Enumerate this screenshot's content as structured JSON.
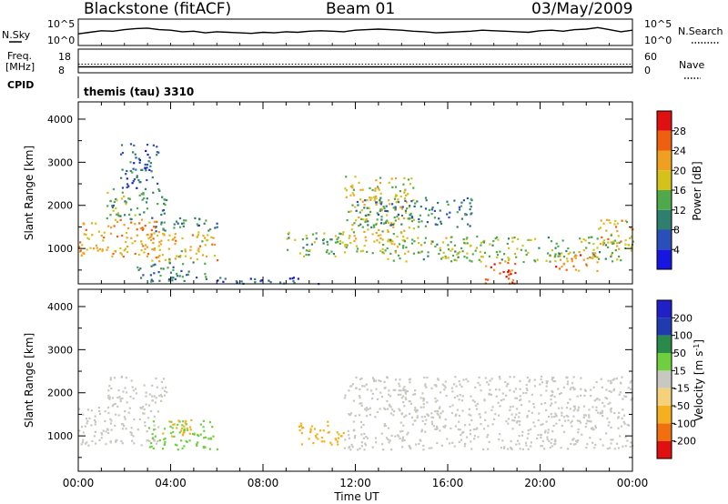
{
  "header": {
    "station": "Blackstone (fitACF)",
    "beam": "Beam 01",
    "date": "03/May/2009"
  },
  "left_labels": {
    "nsky": "N.Sky",
    "freq": "Freq.",
    "freq_unit": "[MHz]",
    "cpid": "CPID"
  },
  "right_labels": {
    "nsearch": "N.Search",
    "nave": "Nave"
  },
  "cpid_text": "themis (tau) 3310",
  "chart_data": [
    {
      "id": "noise",
      "type": "line",
      "left_ticks": [
        "10^5",
        "10^0"
      ],
      "right_ticks": [
        "10^5",
        "10^0"
      ],
      "series": [
        {
          "name": "N.Sky",
          "x": [
            0,
            0.5,
            1,
            1.5,
            2,
            2.5,
            3,
            3.5,
            4,
            4.5,
            5,
            5.5,
            6,
            6.5,
            7,
            7.5,
            8,
            8.5,
            9,
            9.5,
            10,
            10.5,
            11,
            11.5,
            12,
            12.5,
            13,
            13.5,
            14,
            14.5,
            15,
            15.5,
            16,
            16.5,
            17,
            17.5,
            18,
            18.5,
            19,
            19.5,
            20,
            20.5,
            21,
            21.5,
            22,
            22.5,
            23,
            23.5,
            24
          ],
          "values": [
            2.2,
            2.5,
            2.8,
            2.7,
            3.0,
            3.2,
            3.3,
            3.0,
            2.9,
            2.6,
            2.7,
            2.4,
            2.6,
            2.5,
            2.4,
            2.3,
            2.5,
            2.4,
            2.6,
            2.5,
            2.7,
            2.8,
            2.7,
            2.6,
            2.9,
            3.0,
            3.1,
            3.0,
            2.9,
            2.7,
            2.6,
            2.4,
            2.5,
            2.6,
            2.7,
            2.9,
            2.8,
            2.7,
            2.6,
            2.5,
            2.8,
            2.9,
            2.7,
            3.0,
            3.1,
            3.4,
            3.0,
            2.6,
            2.9
          ]
        }
      ]
    },
    {
      "id": "freq",
      "type": "line",
      "left_ticks": [
        "18",
        "8"
      ],
      "right_ticks": [
        "60",
        "0"
      ],
      "series": [
        {
          "name": "Freq.",
          "x": [
            0,
            24
          ],
          "values": [
            10.5,
            10.5
          ]
        },
        {
          "name": "Nave",
          "x": [
            0,
            24
          ],
          "values": [
            22,
            22
          ]
        }
      ]
    },
    {
      "id": "power",
      "type": "heatmap",
      "xlabel": "",
      "ylabel": "Slant Range [km]",
      "xlim": [
        0,
        24
      ],
      "ylim": [
        180,
        4400
      ],
      "yticks": [
        1000,
        2000,
        3000,
        4000
      ],
      "colorbar_label": "Power [dB]",
      "colorbar_ticks": [
        "4",
        "8",
        "12",
        "16",
        "20",
        "24",
        "28"
      ],
      "colorbar_colors": [
        "#1616e0",
        "#2a4fb8",
        "#2f7f6f",
        "#4fa84a",
        "#d4c21a",
        "#f0a020",
        "#ee6010",
        "#e01010"
      ],
      "regions": [
        {
          "x": [
            0.0,
            3.5
          ],
          "r": [
            800,
            1700
          ],
          "power": 22
        },
        {
          "x": [
            1.2,
            3.8
          ],
          "r": [
            1700,
            2400
          ],
          "power": 12
        },
        {
          "x": [
            1.8,
            3.5
          ],
          "r": [
            2400,
            3500
          ],
          "power": 8
        },
        {
          "x": [
            3.0,
            6.0
          ],
          "r": [
            700,
            1400
          ],
          "power": 20
        },
        {
          "x": [
            3.3,
            6.0
          ],
          "r": [
            1400,
            1750
          ],
          "power": 10
        },
        {
          "x": [
            2.5,
            5.5
          ],
          "r": [
            250,
            700
          ],
          "power": 10
        },
        {
          "x": [
            5.5,
            10.5
          ],
          "r": [
            200,
            350
          ],
          "power": 6
        },
        {
          "x": [
            9.0,
            11.5
          ],
          "r": [
            800,
            1400
          ],
          "power": 14
        },
        {
          "x": [
            11.5,
            14.5
          ],
          "r": [
            900,
            2700
          ],
          "power": 18
        },
        {
          "x": [
            12.0,
            17.0
          ],
          "r": [
            1500,
            2200
          ],
          "power": 10
        },
        {
          "x": [
            13.0,
            24.0
          ],
          "r": [
            700,
            1300
          ],
          "power": 16
        },
        {
          "x": [
            17.5,
            19.0
          ],
          "r": [
            200,
            700
          ],
          "power": 26
        },
        {
          "x": [
            20.5,
            22.5
          ],
          "r": [
            500,
            900
          ],
          "power": 24
        },
        {
          "x": [
            22.5,
            24.0
          ],
          "r": [
            1000,
            1700
          ],
          "power": 20
        }
      ]
    },
    {
      "id": "velocity",
      "type": "heatmap",
      "xlabel": "Time UT",
      "ylabel": "Slant Range [km]",
      "xlim": [
        0,
        24
      ],
      "ylim": [
        180,
        4400
      ],
      "xticks": [
        "00:00",
        "04:00",
        "08:00",
        "12:00",
        "16:00",
        "20:00",
        "00:00"
      ],
      "yticks": [
        1000,
        2000,
        3000,
        4000
      ],
      "colorbar_label": "Velocity [m s^-1]",
      "colorbar_ticks": [
        "-200",
        "-100",
        "-50",
        "-15",
        "15",
        "50",
        "100",
        "200"
      ],
      "colorbar_colors": [
        "#e01010",
        "#f07010",
        "#f5b020",
        "#f5d27a",
        "#c8c8c0",
        "#6fcf3f",
        "#2a8a4a",
        "#1e3cb0",
        "#2020c8"
      ],
      "regions": [
        {
          "x": [
            0.0,
            3.5
          ],
          "r": [
            800,
            1700
          ],
          "velocity": 0
        },
        {
          "x": [
            1.2,
            3.8
          ],
          "r": [
            1700,
            2400
          ],
          "velocity": 0
        },
        {
          "x": [
            3.0,
            6.0
          ],
          "r": [
            700,
            1400
          ],
          "velocity": 40
        },
        {
          "x": [
            3.5,
            5.0
          ],
          "r": [
            1000,
            1400
          ],
          "velocity": -60
        },
        {
          "x": [
            9.5,
            11.5
          ],
          "r": [
            800,
            1400
          ],
          "velocity": -60
        },
        {
          "x": [
            11.5,
            24.0
          ],
          "r": [
            700,
            2400
          ],
          "velocity": 0
        }
      ]
    }
  ]
}
